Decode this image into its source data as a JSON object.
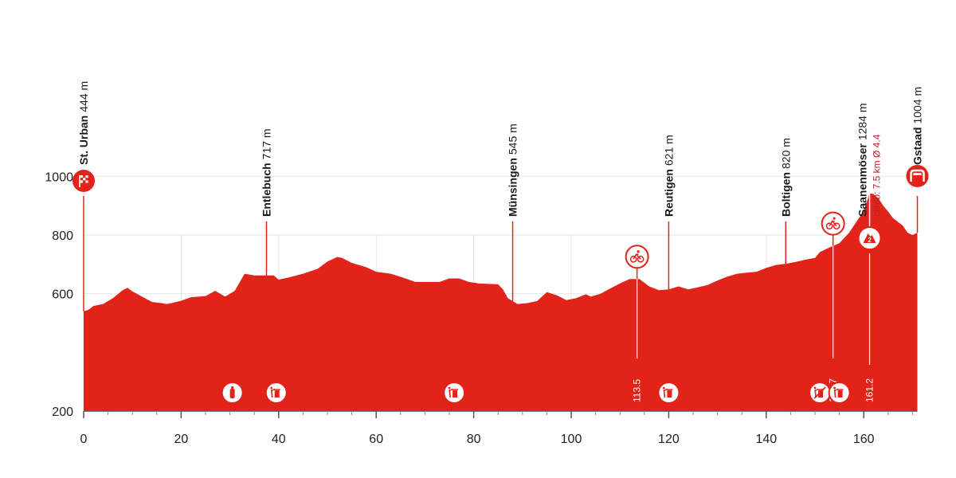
{
  "chart_data": {
    "type": "area",
    "title": "",
    "xlabel": "",
    "ylabel": "",
    "xlim": [
      0,
      171
    ],
    "ylim": [
      200,
      1200
    ],
    "x_ticks": [
      0,
      20,
      40,
      60,
      80,
      100,
      120,
      140,
      160
    ],
    "y_ticks": [
      200,
      600,
      800,
      1000
    ],
    "grid": true,
    "fill_color": "#e2231a",
    "grid_color": "#e6e6e6",
    "profile": [
      [
        0,
        540
      ],
      [
        1,
        545
      ],
      [
        2,
        558
      ],
      [
        4,
        565
      ],
      [
        6,
        585
      ],
      [
        8,
        612
      ],
      [
        9,
        620
      ],
      [
        10,
        608
      ],
      [
        12,
        590
      ],
      [
        14,
        572
      ],
      [
        16,
        568
      ],
      [
        17,
        565
      ],
      [
        18,
        568
      ],
      [
        20,
        576
      ],
      [
        22,
        588
      ],
      [
        25,
        592
      ],
      [
        27,
        610
      ],
      [
        29,
        590
      ],
      [
        31,
        610
      ],
      [
        33,
        668
      ],
      [
        35,
        662
      ],
      [
        39,
        662
      ],
      [
        40,
        648
      ],
      [
        42,
        655
      ],
      [
        45,
        668
      ],
      [
        48,
        685
      ],
      [
        50,
        710
      ],
      [
        52,
        725
      ],
      [
        53,
        722
      ],
      [
        55,
        705
      ],
      [
        58,
        690
      ],
      [
        60,
        675
      ],
      [
        63,
        668
      ],
      [
        66,
        652
      ],
      [
        68,
        640
      ],
      [
        70,
        640
      ],
      [
        73,
        640
      ],
      [
        75,
        652
      ],
      [
        77,
        652
      ],
      [
        79,
        640
      ],
      [
        81,
        635
      ],
      [
        85,
        632
      ],
      [
        86,
        615
      ],
      [
        87,
        585
      ],
      [
        89,
        565
      ],
      [
        91,
        568
      ],
      [
        93,
        575
      ],
      [
        95,
        605
      ],
      [
        97,
        595
      ],
      [
        99,
        578
      ],
      [
        101,
        585
      ],
      [
        103,
        598
      ],
      [
        104,
        590
      ],
      [
        106,
        600
      ],
      [
        108,
        618
      ],
      [
        110,
        635
      ],
      [
        112,
        650
      ],
      [
        114,
        650
      ],
      [
        116,
        625
      ],
      [
        118,
        612
      ],
      [
        120,
        615
      ],
      [
        122,
        625
      ],
      [
        124,
        615
      ],
      [
        126,
        622
      ],
      [
        128,
        630
      ],
      [
        130,
        645
      ],
      [
        132,
        658
      ],
      [
        134,
        668
      ],
      [
        136,
        672
      ],
      [
        138,
        675
      ],
      [
        140,
        688
      ],
      [
        142,
        698
      ],
      [
        144,
        702
      ],
      [
        146,
        708
      ],
      [
        148,
        716
      ],
      [
        150,
        722
      ],
      [
        151,
        742
      ],
      [
        153,
        758
      ],
      [
        155,
        772
      ],
      [
        157,
        808
      ],
      [
        159,
        858
      ],
      [
        160,
        880
      ],
      [
        161.2,
        942
      ],
      [
        162,
        940
      ],
      [
        163,
        925
      ],
      [
        164,
        900
      ],
      [
        165,
        880
      ],
      [
        166,
        858
      ],
      [
        168,
        832
      ],
      [
        169,
        808
      ],
      [
        170,
        800
      ],
      [
        171,
        808
      ]
    ],
    "locations": [
      {
        "name": "St. Urban",
        "alt": "444 m",
        "km": 0,
        "icon": "start-flag-icon"
      },
      {
        "name": "Entlebuch",
        "alt": "717 m",
        "km": 37.5
      },
      {
        "name": "Münsingen",
        "alt": "545 m",
        "km": 88
      },
      {
        "name": "Reutigen",
        "alt": "621 m",
        "km": 120
      },
      {
        "name": "Boltigen",
        "alt": "820 m",
        "km": 144
      },
      {
        "name": "Saanenmöser",
        "alt": "1284 m",
        "km": 161.2,
        "climb": "climb: 7.5 km Ø 4.4",
        "icon": "climb-category-icon",
        "badge": "2"
      },
      {
        "name": "Gstaad",
        "alt": "1004 m",
        "km": 171,
        "icon": "finish-arch-icon"
      }
    ],
    "sprints": [
      {
        "km": 113.5,
        "label": "113.5",
        "icon": "sprint-cyclist-icon"
      },
      {
        "km": 153.7,
        "label": "153.7",
        "icon": "sprint-cyclist-icon"
      }
    ],
    "km_markers": [
      {
        "km": 161.2,
        "label": "161.2"
      }
    ],
    "service_icons": [
      {
        "km": 30.5,
        "icon": "feed-bottle-icon"
      },
      {
        "km": 39.5,
        "icon": "litter-zone-icon"
      },
      {
        "km": 76,
        "icon": "litter-zone-icon"
      },
      {
        "km": 120,
        "icon": "litter-zone-icon"
      },
      {
        "km": 151,
        "icon": "no-litter-icon"
      },
      {
        "km": 155,
        "icon": "litter-zone-icon"
      }
    ]
  }
}
